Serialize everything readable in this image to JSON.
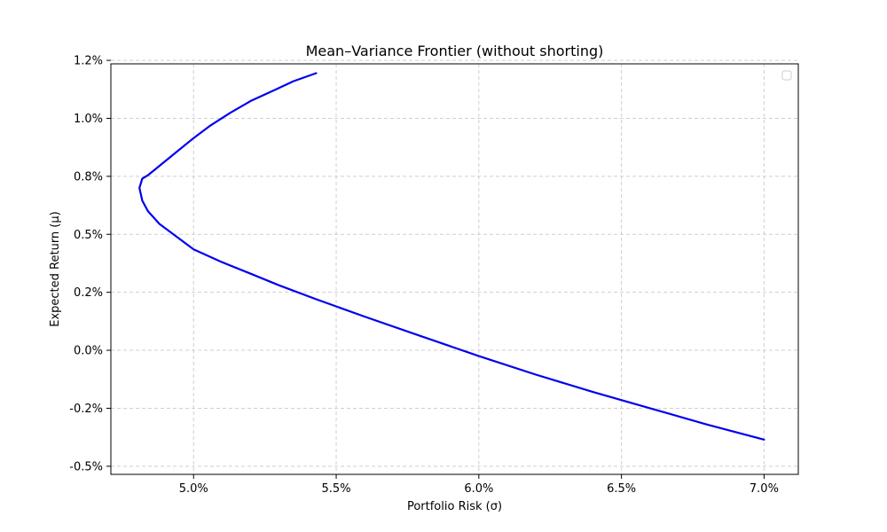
{
  "chart_data": {
    "type": "line",
    "title": "Mean–Variance Frontier (without shorting)",
    "xlabel": "Portfolio Risk (σ)",
    "ylabel": "Expected Return (μ)",
    "xlim": [
      4.71,
      7.12
    ],
    "ylim": [
      -0.535,
      1.235
    ],
    "x_ticks": [
      5.0,
      5.5,
      6.0,
      6.5,
      7.0
    ],
    "x_tick_labels": [
      "5.0%",
      "5.5%",
      "6.0%",
      "6.5%",
      "7.0%"
    ],
    "y_ticks": [
      -0.5,
      -0.25,
      0.0,
      0.25,
      0.5,
      0.75,
      1.0,
      1.25
    ],
    "y_tick_labels": [
      "-0.5%",
      "-0.2%",
      "0.0%",
      "0.2%",
      "0.5%",
      "0.8%",
      "1.0%",
      "1.2%"
    ],
    "grid": true,
    "legend": {
      "placement": "top-right",
      "entries": []
    },
    "series": [
      {
        "color": "#0000ee",
        "x": [
          5.43,
          5.35,
          5.28,
          5.2,
          5.13,
          5.06,
          5.0,
          4.94,
          4.88,
          4.84,
          4.82,
          4.81,
          4.82,
          4.84,
          4.88,
          4.94,
          5.0,
          5.1,
          5.2,
          5.3,
          5.43,
          5.6,
          5.8,
          6.0,
          6.2,
          6.4,
          6.6,
          6.8,
          7.0
        ],
        "y": [
          1.195,
          1.16,
          1.12,
          1.075,
          1.025,
          0.97,
          0.915,
          0.855,
          0.795,
          0.755,
          0.74,
          0.7,
          0.645,
          0.6,
          0.545,
          0.49,
          0.435,
          0.38,
          0.33,
          0.28,
          0.22,
          0.145,
          0.06,
          -0.025,
          -0.105,
          -0.18,
          -0.25,
          -0.32,
          -0.385
        ]
      }
    ]
  }
}
